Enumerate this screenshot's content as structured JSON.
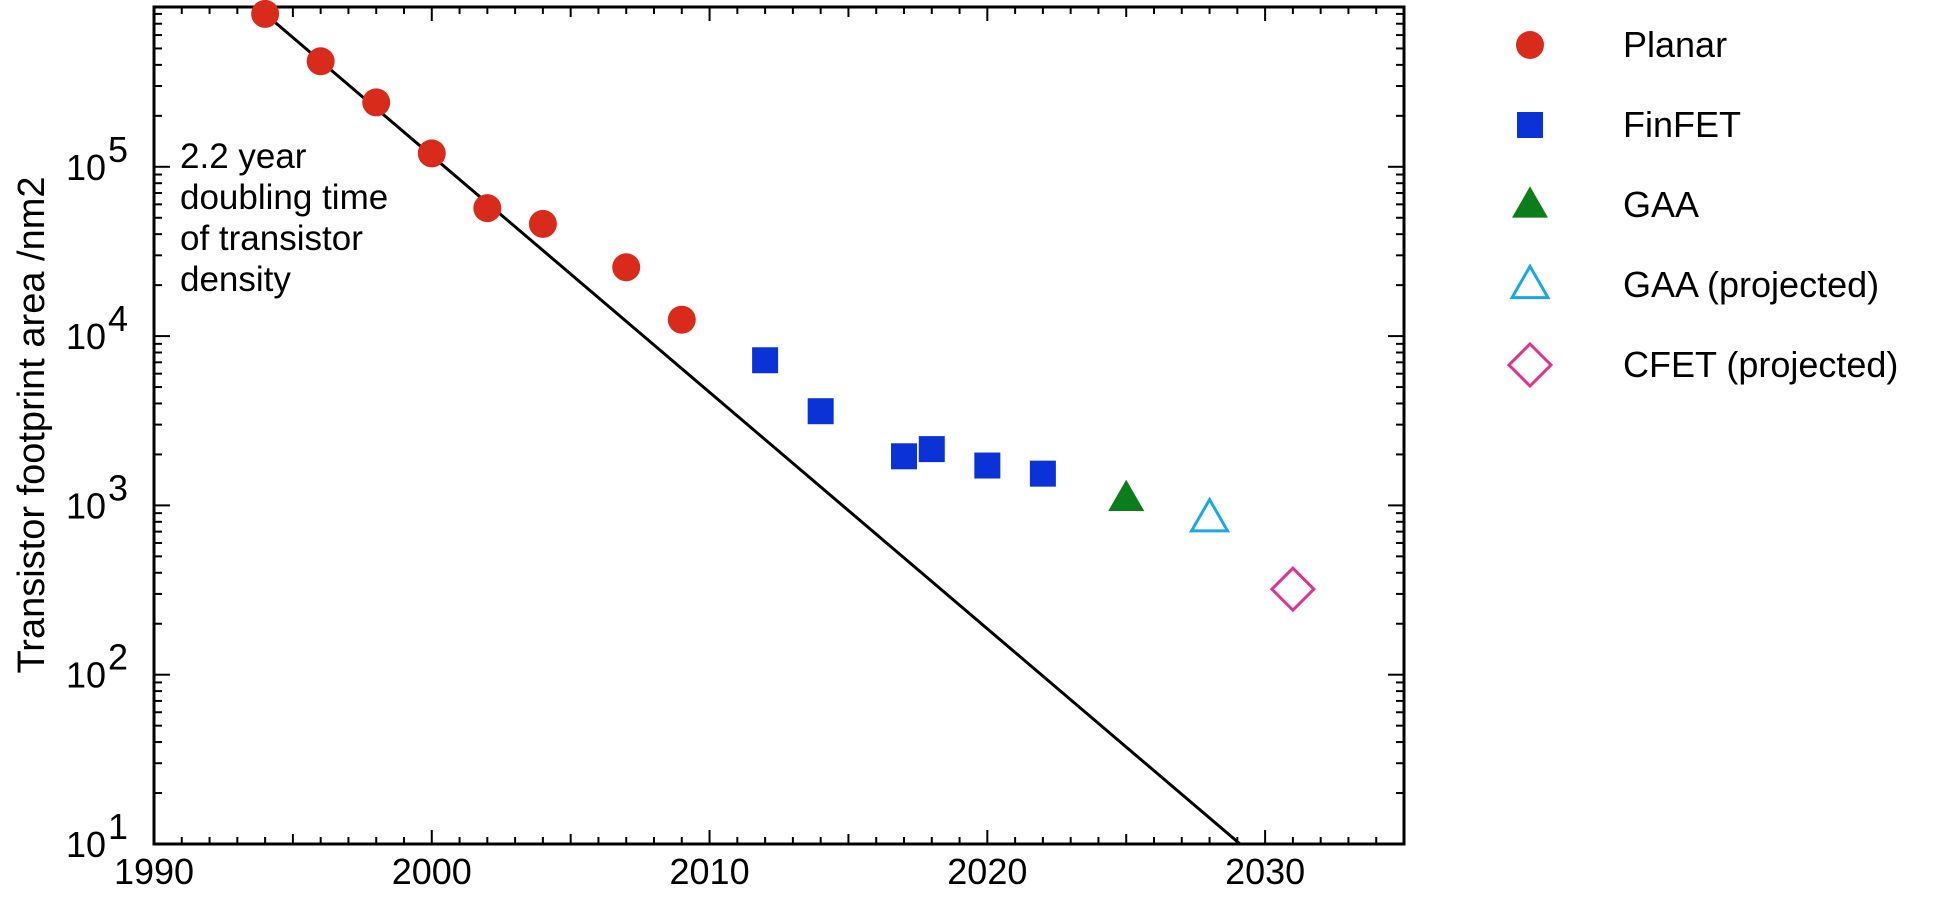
{
  "chart_data": {
    "type": "scatter",
    "title": "",
    "xlabel": "",
    "ylabel": "Transistor footprint area /nm2",
    "xlim": [
      1990,
      2035
    ],
    "ylim": [
      10,
      800000
    ],
    "yscale": "log",
    "xticks": [
      1990,
      2000,
      2010,
      2020,
      2030
    ],
    "yticks": [
      {
        "value": 10,
        "base": "10",
        "exp": "1"
      },
      {
        "value": 100,
        "base": "10",
        "exp": "2"
      },
      {
        "value": 1000,
        "base": "10",
        "exp": "3"
      },
      {
        "value": 10000,
        "base": "10",
        "exp": "4"
      },
      {
        "value": 100000,
        "base": "10",
        "exp": "5"
      }
    ],
    "grid": false,
    "legend_position": "right",
    "annotation": [
      "2.2 year",
      "doubling time",
      "of transistor",
      "density"
    ],
    "trend_line": {
      "doubling_years": 2.2,
      "points": [
        [
          1994,
          800000
        ],
        [
          2029.1,
          10
        ]
      ]
    },
    "series": [
      {
        "name": "Planar",
        "marker": "circle",
        "filled": true,
        "color": "#d92b1b",
        "points": [
          [
            1994,
            800000
          ],
          [
            1996,
            420000
          ],
          [
            1998,
            240000
          ],
          [
            2000,
            120000
          ],
          [
            2002,
            57000
          ],
          [
            2004,
            46000
          ],
          [
            2007,
            25500
          ],
          [
            2009,
            12500
          ]
        ]
      },
      {
        "name": "FinFET",
        "marker": "square",
        "filled": true,
        "color": "#0a32d6",
        "points": [
          [
            2012,
            7200
          ],
          [
            2014,
            3600
          ],
          [
            2017,
            1950
          ],
          [
            2018,
            2150
          ],
          [
            2020,
            1720
          ],
          [
            2022,
            1540
          ]
        ]
      },
      {
        "name": "GAA",
        "marker": "triangle",
        "filled": true,
        "color": "#0b7d1a",
        "points": [
          [
            2025,
            1100
          ]
        ]
      },
      {
        "name": "GAA (projected)",
        "marker": "triangle",
        "filled": false,
        "color": "#1aa7e8",
        "points": [
          [
            2028,
            840
          ]
        ]
      },
      {
        "name": "CFET (projected)",
        "marker": "diamond",
        "filled": false,
        "color": "#e0338f",
        "points": [
          [
            2031,
            320
          ]
        ]
      }
    ]
  }
}
